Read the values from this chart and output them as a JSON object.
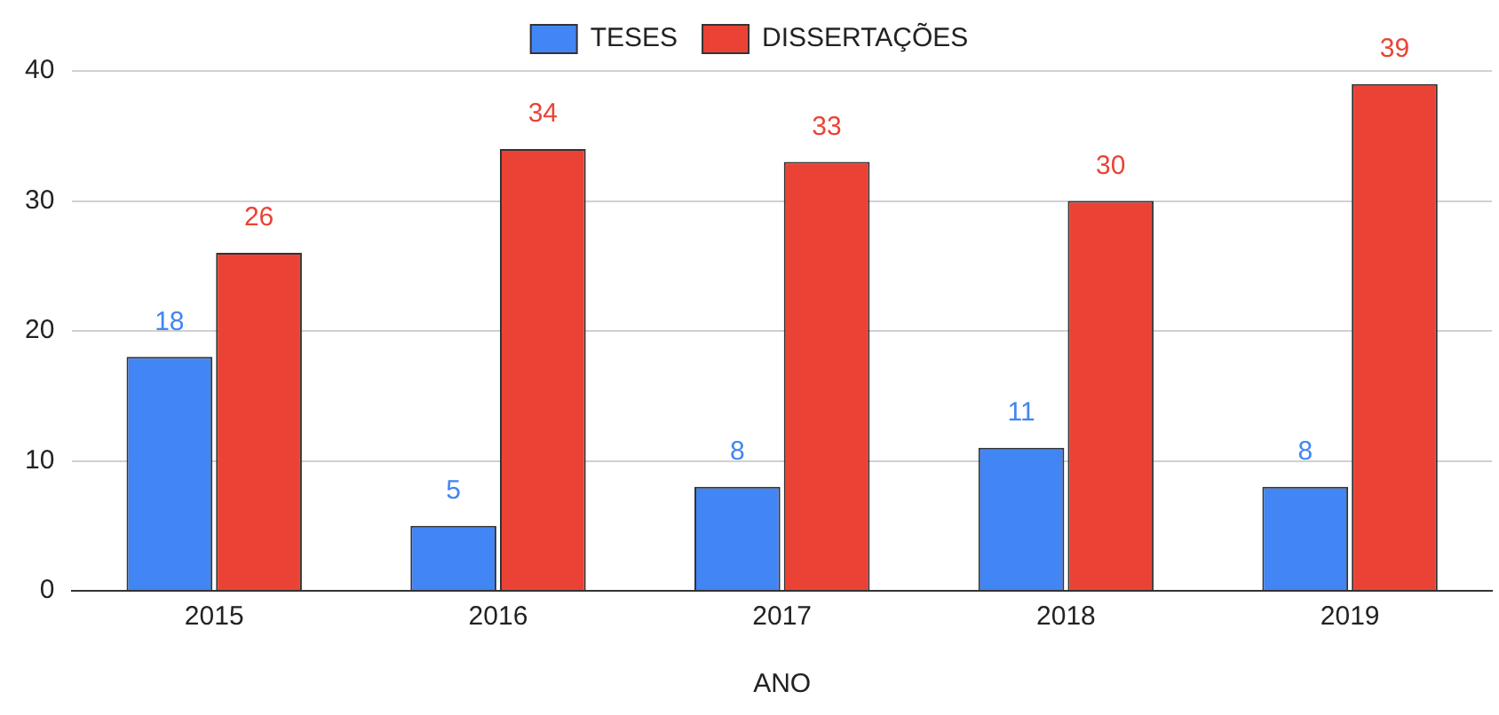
{
  "chart_data": {
    "type": "bar",
    "xlabel": "ANO",
    "categories": [
      "2015",
      "2016",
      "2017",
      "2018",
      "2019"
    ],
    "series": [
      {
        "name": "TESES",
        "color": "#4285f4",
        "values": [
          18,
          5,
          8,
          11,
          8
        ]
      },
      {
        "name": "DISSERTAÇÕES",
        "color": "#ea4335",
        "values": [
          26,
          34,
          33,
          30,
          39
        ]
      }
    ],
    "ylim": [
      0,
      40
    ],
    "yticks": [
      0,
      10,
      20,
      30,
      40
    ],
    "grid": "y",
    "legend": "top",
    "data_labels": true
  }
}
